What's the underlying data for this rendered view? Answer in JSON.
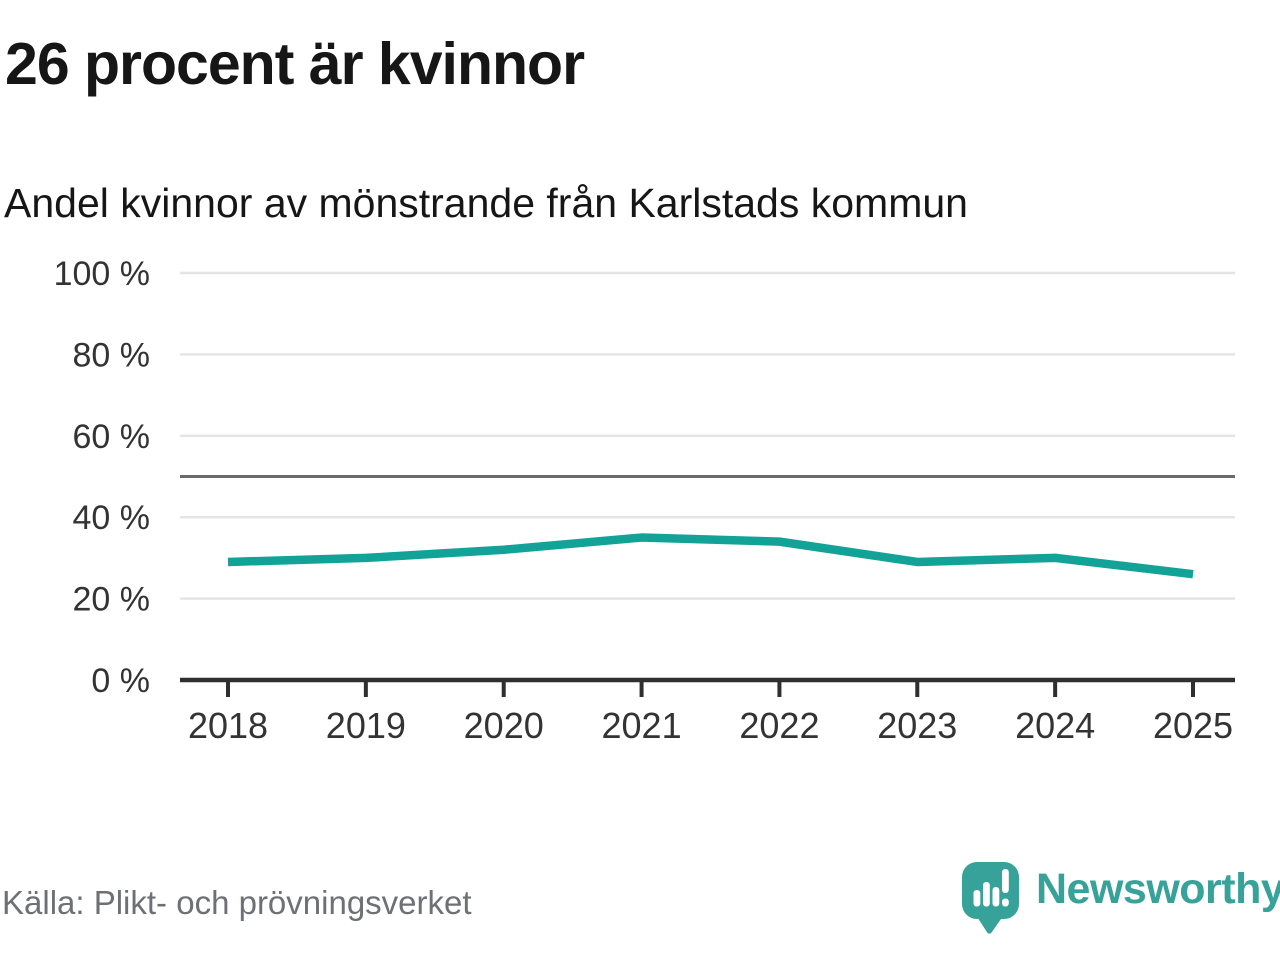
{
  "title": "26 procent är kvinnor",
  "subtitle": "Andel kvinnor av mönstrande från Karlstads kommun",
  "source": "Källa: Plikt- och prövningsverket",
  "brand": {
    "name": "Newsworthy",
    "color": "#36a29a",
    "icon": "speech-bubble-bar-chart-exclamation"
  },
  "colors": {
    "background": "#ffffff",
    "line": "#12a298",
    "grid": "#e4e4e4",
    "reference_line": "#6a6a6a",
    "axis": "#2f2f2f",
    "tick_text": "#333333",
    "title_text": "#161616",
    "source_text": "#6d7074"
  },
  "chart_data": {
    "type": "line",
    "title": "26 procent är kvinnor",
    "subtitle": "Andel kvinnor av mönstrande från Karlstads kommun",
    "x": [
      2018,
      2019,
      2020,
      2021,
      2022,
      2023,
      2024,
      2025
    ],
    "series": [
      {
        "name": "Andel kvinnor av mönstrande",
        "unit": "%",
        "values": [
          29,
          30,
          32,
          35,
          34,
          29,
          30,
          26
        ]
      }
    ],
    "xlabel": "",
    "ylabel": "",
    "ylim": [
      0,
      100
    ],
    "yticks": [
      0,
      20,
      40,
      60,
      80,
      100
    ],
    "ytick_suffix": " %",
    "reference_line": 50,
    "grid": "horizontal",
    "legend": "none"
  }
}
